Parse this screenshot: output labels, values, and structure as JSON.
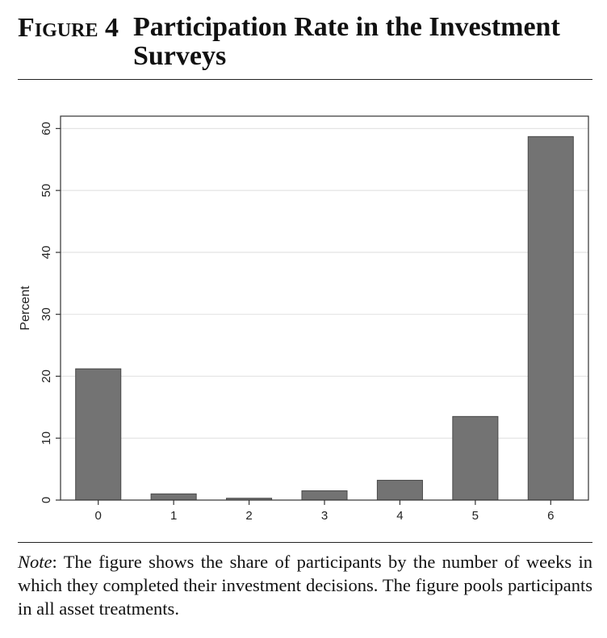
{
  "figure": {
    "label": "Figure 4",
    "title": "Participation Rate in the Investment Surveys"
  },
  "note": {
    "lead": "Note",
    "text": ": The figure shows the share of participants by the number of weeks in which they completed their investment decisions. The figure pools participants in all asset treatments."
  },
  "colors": {
    "bar": "#737373",
    "bar_stroke": "#4a4a4a",
    "grid": "#e4e4e4",
    "axis": "#333333"
  },
  "chart_data": {
    "type": "bar",
    "title": "",
    "xlabel": "",
    "ylabel": "Percent",
    "categories": [
      "0",
      "1",
      "2",
      "3",
      "4",
      "5",
      "6"
    ],
    "values": [
      21.2,
      1.0,
      0.3,
      1.5,
      3.2,
      13.5,
      58.7
    ],
    "ylim": [
      0,
      62
    ],
    "yticks": [
      0,
      10,
      20,
      30,
      40,
      50,
      60
    ],
    "grid": true,
    "legend": "none"
  }
}
